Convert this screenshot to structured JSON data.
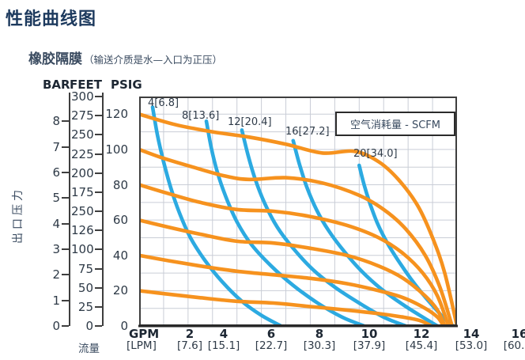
{
  "page": {
    "title": "性能曲线图",
    "subtitle": "橡胶隔膜",
    "subtitle_note": "（输送介质是水—入口为正压）"
  },
  "legend": {
    "label": "空气消耗量 - SCFM"
  },
  "axes": {
    "y_title": "出口压力",
    "bar_header": "BAR",
    "feet_header": "FEET",
    "psig_header": "PSIG",
    "x_header_top": "GPM",
    "x_header_bottom": "[LPM]",
    "flow_label": "流量"
  },
  "colors": {
    "pressure_curve": "#F6921E",
    "air_curve": "#2CAAE1",
    "grid": "#C9CDD6",
    "frame": "#3E3E3E",
    "axis_text": "#2E3A47",
    "title_text": "#1D3A5E"
  },
  "chart_data": {
    "type": "line",
    "title": "性能曲线图",
    "subtitle": "橡胶隔膜（输送介质是水—入口为正压）",
    "legend": "空气消耗量 - SCFM",
    "grid": true,
    "legend_position": "top-right",
    "x_axis": {
      "label_top": "GPM",
      "label_bottom": "[LPM]",
      "flow_label": "流量",
      "gpm_ticks": [
        "2",
        "4",
        "6",
        "8",
        "10",
        "12",
        "14",
        "16"
      ],
      "lpm_ticks": [
        "[7.6]",
        "[15.1]",
        "[22.7]",
        "[30.3]",
        "[37.9]",
        "[45.4]",
        "[53.0]",
        "[60.6]"
      ],
      "plot_range_gpm": [
        0,
        13
      ]
    },
    "y_axes": {
      "title": "出口压力",
      "bar": {
        "header": "BAR",
        "ticks": [
          "8",
          "7",
          "6",
          "5",
          "4",
          "3",
          "2",
          "1",
          "0"
        ],
        "range": [
          0,
          9
        ]
      },
      "feet": {
        "header": "FEET",
        "ticks": [
          "300",
          "275",
          "250",
          "225",
          "200",
          "175",
          "250",
          "126",
          "100",
          "75",
          "50",
          "25",
          "0"
        ],
        "range": [
          0,
          300
        ]
      },
      "psig": {
        "header": "PSIG",
        "ticks": [
          120,
          100,
          80,
          60,
          40,
          20,
          0
        ],
        "range": [
          0,
          130
        ]
      }
    },
    "series": [
      {
        "id": "press-120",
        "role": "pressure",
        "label": "",
        "units": "PSIG vs GPM",
        "points": [
          [
            0,
            120
          ],
          [
            1.5,
            114
          ],
          [
            3,
            110
          ],
          [
            4.5,
            107
          ],
          [
            6,
            103
          ],
          [
            7.5,
            98
          ],
          [
            8.8,
            99
          ],
          [
            9.8,
            93
          ],
          [
            10.6,
            83
          ],
          [
            11.4,
            68
          ],
          [
            12,
            50
          ],
          [
            12.5,
            30
          ],
          [
            13,
            0
          ]
        ]
      },
      {
        "id": "press-100",
        "role": "pressure",
        "label": "",
        "units": "PSIG vs GPM",
        "points": [
          [
            0,
            100
          ],
          [
            1,
            95
          ],
          [
            2.2,
            90
          ],
          [
            3.5,
            85
          ],
          [
            4.5,
            83
          ],
          [
            6,
            84
          ],
          [
            7.5,
            81
          ],
          [
            9,
            74
          ],
          [
            10,
            66
          ],
          [
            10.9,
            55
          ],
          [
            11.7,
            40
          ],
          [
            12.3,
            22
          ],
          [
            12.8,
            0
          ]
        ]
      },
      {
        "id": "press-80",
        "role": "pressure",
        "label": "",
        "units": "PSIG vs GPM",
        "points": [
          [
            0,
            80
          ],
          [
            1.2,
            75
          ],
          [
            2.5,
            70
          ],
          [
            4,
            66
          ],
          [
            5.5,
            65
          ],
          [
            7,
            62
          ],
          [
            8.5,
            57
          ],
          [
            9.8,
            50
          ],
          [
            10.8,
            41
          ],
          [
            11.6,
            30
          ],
          [
            12.2,
            17
          ],
          [
            12.65,
            0
          ]
        ]
      },
      {
        "id": "press-60",
        "role": "pressure",
        "label": "",
        "units": "PSIG vs GPM",
        "points": [
          [
            0,
            60
          ],
          [
            1.2,
            56
          ],
          [
            2.5,
            52
          ],
          [
            4,
            48
          ],
          [
            5.5,
            47
          ],
          [
            7,
            44
          ],
          [
            8.5,
            40
          ],
          [
            9.8,
            34
          ],
          [
            10.8,
            27
          ],
          [
            11.7,
            17
          ],
          [
            12.2,
            9
          ],
          [
            12.5,
            0
          ]
        ]
      },
      {
        "id": "press-40",
        "role": "pressure",
        "label": "",
        "units": "PSIG vs GPM",
        "points": [
          [
            0,
            40
          ],
          [
            1.2,
            37
          ],
          [
            2.5,
            34
          ],
          [
            4,
            31
          ],
          [
            5.5,
            29
          ],
          [
            7,
            27
          ],
          [
            8.5,
            24
          ],
          [
            9.8,
            20
          ],
          [
            10.8,
            16
          ],
          [
            11.7,
            10
          ],
          [
            12.2,
            5
          ],
          [
            12.45,
            0
          ]
        ]
      },
      {
        "id": "press-20",
        "role": "pressure",
        "label": "",
        "units": "PSIG vs GPM",
        "points": [
          [
            0,
            20
          ],
          [
            1.2,
            18
          ],
          [
            2.5,
            16
          ],
          [
            4,
            14
          ],
          [
            5.5,
            13
          ],
          [
            7,
            11
          ],
          [
            8.5,
            9
          ],
          [
            9.8,
            7
          ],
          [
            10.8,
            5
          ],
          [
            11.5,
            3
          ],
          [
            11.95,
            0
          ]
        ]
      },
      {
        "id": "scfm-4",
        "role": "air",
        "label": "4[6.8]",
        "units": "SCFM",
        "points": [
          [
            0.55,
            124
          ],
          [
            0.75,
            108
          ],
          [
            1.0,
            93
          ],
          [
            1.3,
            78
          ],
          [
            1.65,
            64
          ],
          [
            2.1,
            50
          ],
          [
            2.7,
            37
          ],
          [
            3.4,
            25
          ],
          [
            4.2,
            14
          ],
          [
            5.0,
            6
          ],
          [
            5.8,
            0
          ]
        ]
      },
      {
        "id": "scfm-8",
        "role": "air",
        "label": "8[13.6]",
        "units": "SCFM",
        "points": [
          [
            2.75,
            116
          ],
          [
            2.95,
            101
          ],
          [
            3.2,
            87
          ],
          [
            3.55,
            73
          ],
          [
            4.0,
            59
          ],
          [
            4.6,
            46
          ],
          [
            5.4,
            34
          ],
          [
            6.3,
            23
          ],
          [
            7.3,
            13
          ],
          [
            8.3,
            5
          ],
          [
            9.2,
            0
          ]
        ]
      },
      {
        "id": "scfm-12",
        "role": "air",
        "label": "12[20.4]",
        "units": "SCFM",
        "points": [
          [
            4.2,
            111
          ],
          [
            4.45,
            97
          ],
          [
            4.75,
            83
          ],
          [
            5.15,
            69
          ],
          [
            5.65,
            56
          ],
          [
            6.3,
            44
          ],
          [
            7.1,
            32
          ],
          [
            8.0,
            22
          ],
          [
            9.0,
            13
          ],
          [
            10.0,
            5
          ],
          [
            10.9,
            0
          ]
        ]
      },
      {
        "id": "scfm-16",
        "role": "air",
        "label": "16[27.2]",
        "units": "SCFM",
        "points": [
          [
            6.3,
            105
          ],
          [
            6.55,
            92
          ],
          [
            6.85,
            79
          ],
          [
            7.25,
            66
          ],
          [
            7.75,
            54
          ],
          [
            8.4,
            42
          ],
          [
            9.1,
            31
          ],
          [
            9.9,
            21
          ],
          [
            10.8,
            12
          ],
          [
            11.6,
            5
          ],
          [
            12.2,
            0
          ]
        ]
      },
      {
        "id": "scfm-20",
        "role": "air",
        "label": "20[34.0]",
        "units": "SCFM",
        "points": [
          [
            9.0,
            91
          ],
          [
            9.2,
            80
          ],
          [
            9.45,
            69
          ],
          [
            9.75,
            58
          ],
          [
            10.15,
            47
          ],
          [
            10.6,
            37
          ],
          [
            11.1,
            27
          ],
          [
            11.6,
            18
          ],
          [
            12.1,
            10
          ],
          [
            12.5,
            4
          ],
          [
            12.85,
            0
          ]
        ]
      }
    ]
  }
}
